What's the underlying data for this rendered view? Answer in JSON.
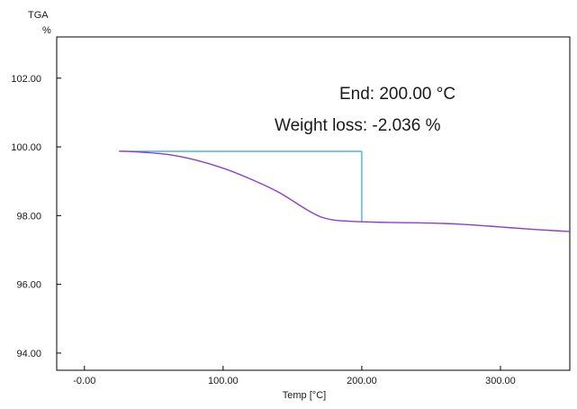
{
  "chart_data": {
    "type": "line",
    "ylabel": "TGA",
    "yunit": "%",
    "xlabel": "Temp [°C]",
    "xlim": [
      -20,
      350
    ],
    "ylim": [
      93.5,
      103.2
    ],
    "xticks": [
      0,
      100,
      200,
      300
    ],
    "xtick_labels": [
      "-0.00",
      "100.00",
      "200.00",
      "300.00"
    ],
    "yticks": [
      94,
      96,
      98,
      100,
      102
    ],
    "ytick_labels": [
      "94.00",
      "96.00",
      "98.00",
      "100.00",
      "102.00"
    ],
    "grid": false,
    "series": [
      {
        "color": "#8a3fd1",
        "x": [
          25,
          40,
          60,
          80,
          100,
          120,
          140,
          160,
          170,
          180,
          190,
          200,
          220,
          240,
          260,
          280,
          300,
          320,
          340,
          350
        ],
        "y": [
          99.88,
          99.85,
          99.78,
          99.62,
          99.38,
          99.06,
          98.68,
          98.18,
          97.97,
          97.87,
          97.84,
          97.82,
          97.8,
          97.79,
          97.77,
          97.73,
          97.67,
          97.61,
          97.56,
          97.54
        ]
      }
    ],
    "step_marker": {
      "color": "#29a9d6",
      "x_start": 25,
      "x_end": 200,
      "y_top": 99.87,
      "y_bottom": 97.82
    },
    "annotations": [
      "End: 200.00 °C",
      "Weight loss: -2.036 %"
    ]
  }
}
